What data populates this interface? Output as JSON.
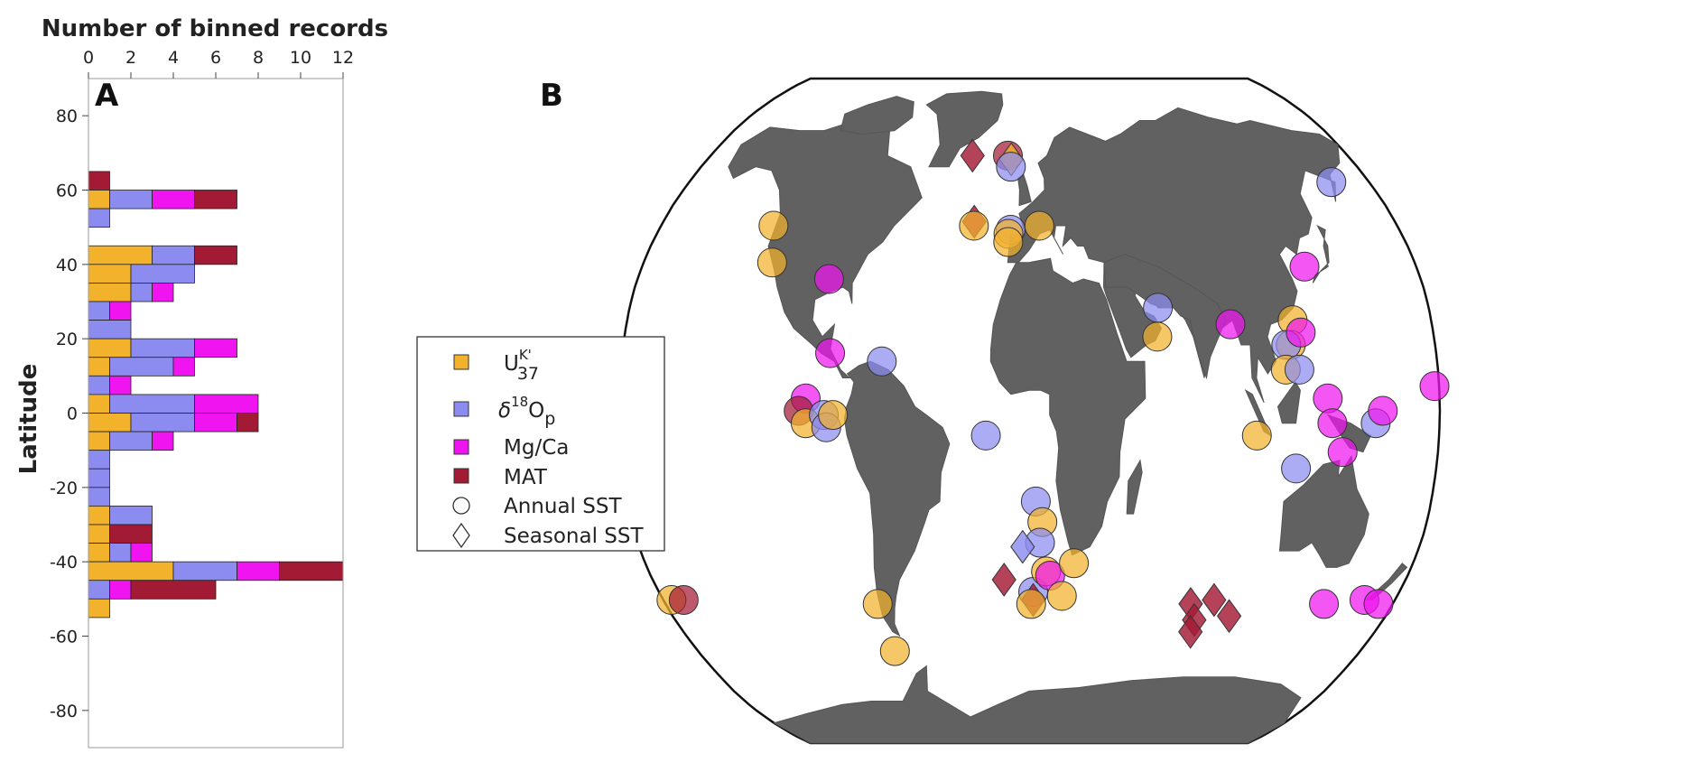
{
  "chart_data": [
    {
      "type": "bar",
      "orientation": "horizontal",
      "stacked": true,
      "panel": "A",
      "title": "Number of binned records",
      "xlabel": "Number of binned records",
      "ylabel": "Latitude",
      "xlim": [
        0,
        12
      ],
      "ylim": [
        -90,
        90
      ],
      "xticks": [
        "0",
        "2",
        "4",
        "6",
        "8",
        "10",
        "12"
      ],
      "yticks": [
        "80",
        "60",
        "40",
        "20",
        "0",
        "-20",
        "-40",
        "-60",
        "-80"
      ],
      "bin_size_degrees": 5,
      "categories": [
        62.5,
        57.5,
        52.5,
        42.5,
        37.5,
        32.5,
        27.5,
        22.5,
        17.5,
        12.5,
        7.5,
        2.5,
        -2.5,
        -7.5,
        -12.5,
        -17.5,
        -22.5,
        -27.5,
        -32.5,
        -37.5,
        -42.5,
        -47.5,
        -52.5
      ],
      "series": [
        {
          "name": "U37K'",
          "color": "#f2b22c",
          "values": [
            0,
            1,
            0,
            3,
            2,
            2,
            0,
            0,
            2,
            1,
            0,
            1,
            2,
            1,
            0,
            0,
            0,
            1,
            1,
            1,
            4,
            0,
            1
          ]
        },
        {
          "name": "δ18Op",
          "color": "#8c8cf0",
          "values": [
            0,
            2,
            1,
            2,
            3,
            1,
            1,
            2,
            3,
            3,
            1,
            4,
            3,
            2,
            1,
            1,
            1,
            2,
            0,
            1,
            3,
            1,
            0
          ]
        },
        {
          "name": "Mg/Ca",
          "color": "#f015f0",
          "values": [
            0,
            2,
            0,
            0,
            0,
            1,
            1,
            0,
            2,
            1,
            1,
            3,
            2,
            1,
            0,
            0,
            0,
            0,
            0,
            1,
            2,
            1,
            0
          ]
        },
        {
          "name": "MAT",
          "color": "#a31a35",
          "values": [
            1,
            2,
            0,
            2,
            0,
            0,
            0,
            0,
            0,
            0,
            0,
            0,
            1,
            0,
            0,
            0,
            0,
            0,
            2,
            0,
            3,
            4,
            0
          ]
        }
      ]
    },
    {
      "type": "scatter",
      "panel": "B",
      "projection": "Robinson",
      "xlim": [
        -180,
        180
      ],
      "ylim": [
        -90,
        90
      ],
      "legend": {
        "placement": "left-middle",
        "entries": [
          {
            "key": "uk37",
            "label_main": "U",
            "label_sup": "K'",
            "label_sub": "37",
            "marker": "square",
            "color": "#f2b22c"
          },
          {
            "key": "d18o",
            "label_main": "δ",
            "label_sup": "18",
            "label_main2": "O",
            "label_sub": "p",
            "marker": "square",
            "color": "#8c8cf0"
          },
          {
            "key": "mgca",
            "label": "Mg/Ca",
            "marker": "square",
            "color": "#f015f0"
          },
          {
            "key": "mat",
            "label": "MAT",
            "marker": "square",
            "color": "#a31a35"
          },
          {
            "key": "annual",
            "label": "Annual SST",
            "marker": "circle",
            "color": "#ffffff"
          },
          {
            "key": "seasonal",
            "label": "Seasonal SST",
            "marker": "diamond",
            "color": "#ffffff"
          }
        ]
      },
      "points": [
        {
          "lon": -125,
          "lat": 45,
          "proxy": "uk37",
          "season": "annual"
        },
        {
          "lon": -120,
          "lat": 36,
          "proxy": "uk37",
          "season": "annual"
        },
        {
          "lon": -92,
          "lat": 32,
          "proxy": "mgca",
          "season": "annual"
        },
        {
          "lon": -88,
          "lat": 14,
          "proxy": "mgca",
          "season": "annual"
        },
        {
          "lon": -65,
          "lat": 12,
          "proxy": "d18o",
          "season": "annual"
        },
        {
          "lon": -98,
          "lat": 3,
          "proxy": "mgca",
          "season": "annual"
        },
        {
          "lon": -101,
          "lat": 0,
          "proxy": "mat",
          "season": "annual"
        },
        {
          "lon": -98,
          "lat": -3,
          "proxy": "uk37",
          "season": "annual"
        },
        {
          "lon": -90,
          "lat": -1,
          "proxy": "d18o",
          "season": "annual"
        },
        {
          "lon": -89,
          "lat": -4,
          "proxy": "d18o",
          "season": "annual"
        },
        {
          "lon": -86,
          "lat": -1,
          "proxy": "uk37",
          "season": "annual"
        },
        {
          "lon": -176,
          "lat": -46,
          "proxy": "uk37",
          "season": "annual"
        },
        {
          "lon": -170,
          "lat": -46,
          "proxy": "mat",
          "season": "annual"
        },
        {
          "lon": -75,
          "lat": -47,
          "proxy": "uk37",
          "season": "annual"
        },
        {
          "lon": -73,
          "lat": -59,
          "proxy": "uk37",
          "season": "annual"
        },
        {
          "lon": -32,
          "lat": 63,
          "proxy": "mat",
          "season": "seasonal"
        },
        {
          "lon": -12,
          "lat": 63,
          "proxy": "mat",
          "season": "annual"
        },
        {
          "lon": -10,
          "lat": 62,
          "proxy": "uk37",
          "season": "seasonal"
        },
        {
          "lon": -10,
          "lat": 60,
          "proxy": "d18o",
          "season": "annual"
        },
        {
          "lon": -27,
          "lat": 46,
          "proxy": "mat",
          "season": "seasonal"
        },
        {
          "lon": -27,
          "lat": 45,
          "proxy": "uk37",
          "season": "annual"
        },
        {
          "lon": -9,
          "lat": 44,
          "proxy": "d18o",
          "season": "annual"
        },
        {
          "lon": -10,
          "lat": 43,
          "proxy": "uk37",
          "season": "annual"
        },
        {
          "lon": -10,
          "lat": 41,
          "proxy": "uk37",
          "season": "annual"
        },
        {
          "lon": 5,
          "lat": 45,
          "proxy": "uk37",
          "season": "annual"
        },
        {
          "lon": -19,
          "lat": -6,
          "proxy": "d18o",
          "season": "annual"
        },
        {
          "lon": 3,
          "lat": -22,
          "proxy": "d18o",
          "season": "annual"
        },
        {
          "lon": 6,
          "lat": -27,
          "proxy": "uk37",
          "season": "annual"
        },
        {
          "lon": 5,
          "lat": -32,
          "proxy": "d18o",
          "season": "annual"
        },
        {
          "lon": -3,
          "lat": -33,
          "proxy": "d18o",
          "season": "seasonal"
        },
        {
          "lon": 2,
          "lat": -44,
          "proxy": "d18o",
          "season": "annual"
        },
        {
          "lon": 2,
          "lat": -46,
          "proxy": "mat",
          "season": "seasonal"
        },
        {
          "lon": 1,
          "lat": -47,
          "proxy": "uk37",
          "season": "annual"
        },
        {
          "lon": 8,
          "lat": -39,
          "proxy": "uk37",
          "season": "annual"
        },
        {
          "lon": 10,
          "lat": -40,
          "proxy": "mgca",
          "season": "annual"
        },
        {
          "lon": 16,
          "lat": -45,
          "proxy": "uk37",
          "season": "annual"
        },
        {
          "lon": 21,
          "lat": -37,
          "proxy": "uk37",
          "season": "annual"
        },
        {
          "lon": -12,
          "lat": -41,
          "proxy": "mat",
          "season": "seasonal"
        },
        {
          "lon": 58,
          "lat": 25,
          "proxy": "d18o",
          "season": "annual"
        },
        {
          "lon": 57,
          "lat": 18,
          "proxy": "uk37",
          "season": "annual"
        },
        {
          "lon": 90,
          "lat": 21,
          "proxy": "mgca",
          "season": "annual"
        },
        {
          "lon": 80,
          "lat": -47,
          "proxy": "mat",
          "season": "seasonal"
        },
        {
          "lon": 84,
          "lat": -51,
          "proxy": "mat",
          "season": "seasonal"
        },
        {
          "lon": 84,
          "lat": -54,
          "proxy": "mat",
          "season": "seasonal"
        },
        {
          "lon": 91,
          "lat": -46,
          "proxy": "mat",
          "season": "seasonal"
        },
        {
          "lon": 101,
          "lat": -50,
          "proxy": "mat",
          "season": "seasonal"
        },
        {
          "lon": 100,
          "lat": -6,
          "proxy": "uk37",
          "season": "annual"
        },
        {
          "lon": 118,
          "lat": 22,
          "proxy": "uk37",
          "season": "annual"
        },
        {
          "lon": 116,
          "lat": 16,
          "proxy": "uk37",
          "season": "annual"
        },
        {
          "lon": 114,
          "lat": 16,
          "proxy": "d18o",
          "season": "annual"
        },
        {
          "lon": 113,
          "lat": 10,
          "proxy": "uk37",
          "season": "annual"
        },
        {
          "lon": 119,
          "lat": 10,
          "proxy": "d18o",
          "season": "annual"
        },
        {
          "lon": 121,
          "lat": 19,
          "proxy": "mgca",
          "season": "annual"
        },
        {
          "lon": 128,
          "lat": 35,
          "proxy": "mgca",
          "season": "annual"
        },
        {
          "lon": 160,
          "lat": 56,
          "proxy": "d18o",
          "season": "annual"
        },
        {
          "lon": 131,
          "lat": 3,
          "proxy": "mgca",
          "season": "annual"
        },
        {
          "lon": 133,
          "lat": -3,
          "proxy": "mgca",
          "season": "annual"
        },
        {
          "lon": 138,
          "lat": -10,
          "proxy": "mgca",
          "season": "annual"
        },
        {
          "lon": 152,
          "lat": -3,
          "proxy": "d18o",
          "season": "annual"
        },
        {
          "lon": 155,
          "lat": 0,
          "proxy": "mgca",
          "season": "annual"
        },
        {
          "lon": 178,
          "lat": 6,
          "proxy": "mgca",
          "season": "annual"
        },
        {
          "lon": 118,
          "lat": -14,
          "proxy": "d18o",
          "season": "annual"
        },
        {
          "lon": 146,
          "lat": -47,
          "proxy": "mgca",
          "season": "annual"
        },
        {
          "lon": 165,
          "lat": -46,
          "proxy": "mgca",
          "season": "annual"
        },
        {
          "lon": 173,
          "lat": -47,
          "proxy": "mgca",
          "season": "annual"
        }
      ]
    }
  ]
}
